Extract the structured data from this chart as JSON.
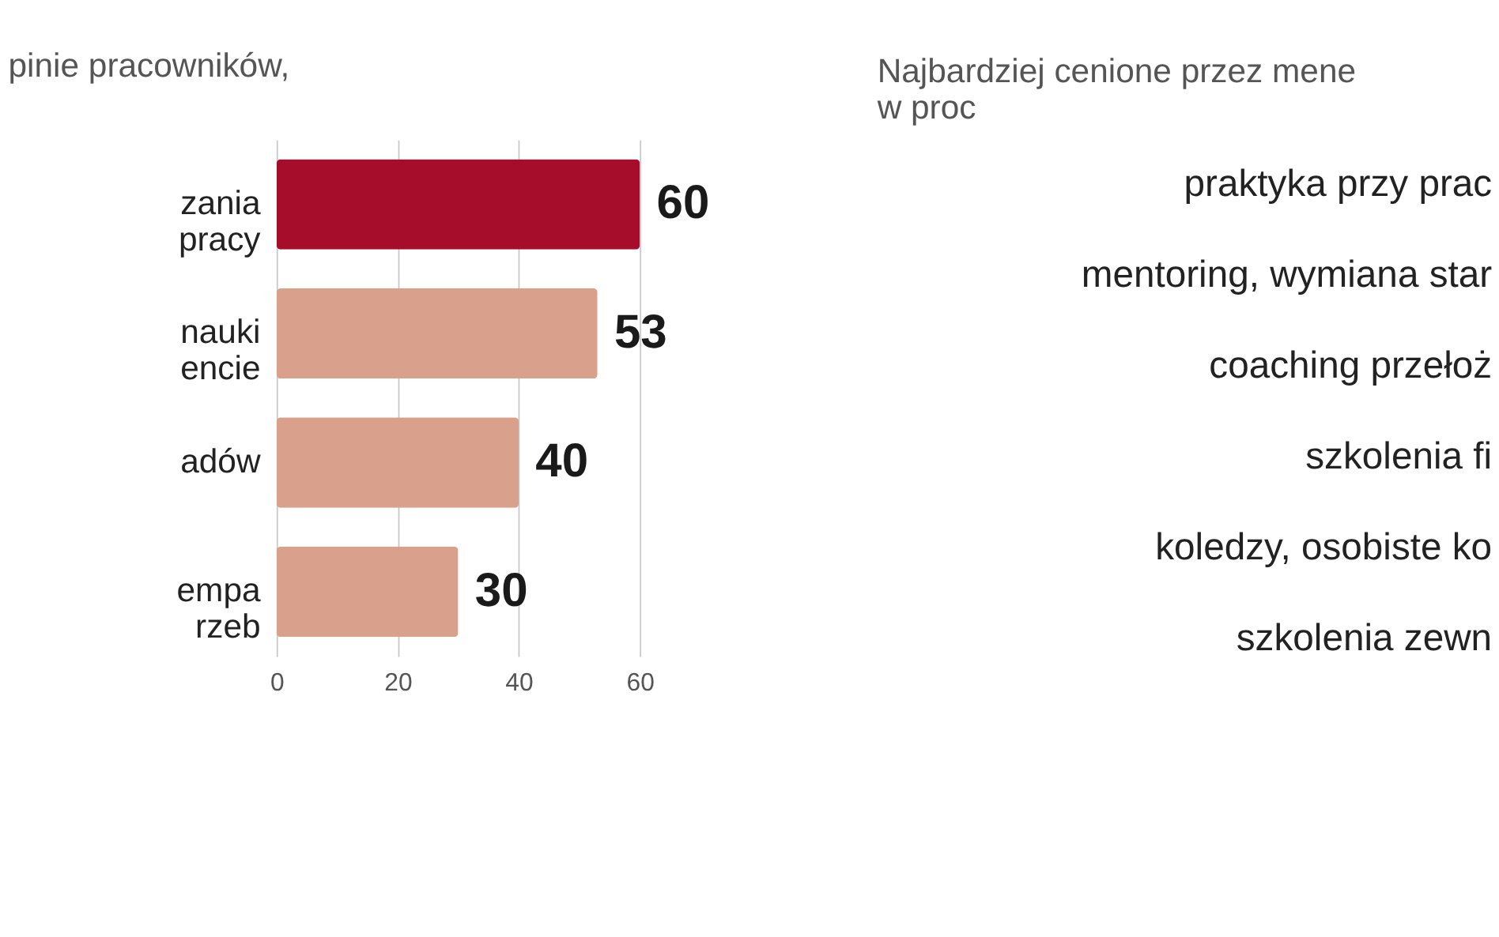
{
  "chart_data": [
    {
      "type": "bar",
      "orientation": "horizontal",
      "title": "pinie pracowników,",
      "categories": [
        "zania\npracy",
        "nauki\nencie",
        "adów",
        "empa\nrzeb"
      ],
      "values": [
        60,
        53,
        40,
        30
      ],
      "colors": [
        "#a50d2a",
        "#d9a08c",
        "#d9a08c",
        "#d9a08c"
      ],
      "xlim": [
        0,
        60
      ],
      "xticks": [
        0,
        20,
        40,
        60
      ],
      "grid": "x",
      "data_labels": true
    },
    {
      "type": "other",
      "title": "Najbardziej cenione przez mene\nw proc",
      "annotations": [
        "praktyka przy prac",
        "mentoring, wymiana star",
        "coaching przełoż",
        "szkolenia fi",
        "koledzy, osobiste ko",
        "szkolenia zewn"
      ]
    }
  ]
}
